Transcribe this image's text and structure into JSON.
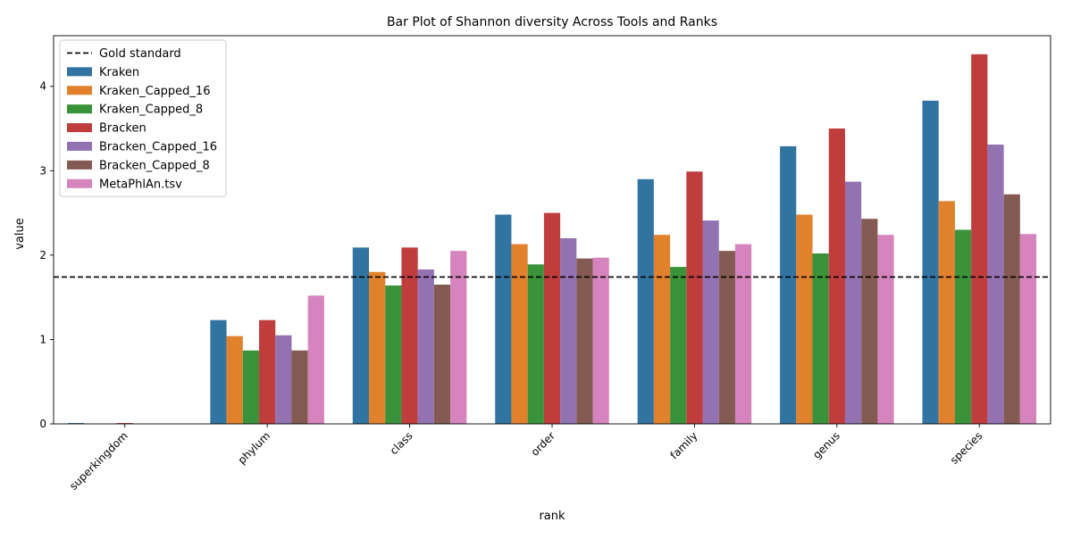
{
  "chart_data": {
    "type": "bar",
    "title": "Bar Plot of Shannon diversity Across Tools and Ranks",
    "xlabel": "rank",
    "ylabel": "value",
    "ylim": [
      0,
      4.6
    ],
    "yticks": [
      0,
      1,
      2,
      3,
      4
    ],
    "ytick_labels": [
      "0",
      "1",
      "2",
      "3",
      "4"
    ],
    "categories": [
      "superkingdom",
      "phylum",
      "class",
      "order",
      "family",
      "genus",
      "species"
    ],
    "reference_line": {
      "name": "Gold standard",
      "value": 1.74,
      "style": "dashed",
      "color": "#000000"
    },
    "legend_position": "upper-left",
    "grid": false,
    "series": [
      {
        "name": "Kraken",
        "color": "#3274a1",
        "values": [
          0.01,
          1.23,
          2.09,
          2.48,
          2.9,
          3.29,
          3.83
        ]
      },
      {
        "name": "Kraken_Capped_16",
        "color": "#e1812c",
        "values": [
          0.0,
          1.04,
          1.8,
          2.13,
          2.24,
          2.48,
          2.64
        ]
      },
      {
        "name": "Kraken_Capped_8",
        "color": "#3a923a",
        "values": [
          0.0,
          0.87,
          1.64,
          1.89,
          1.86,
          2.02,
          2.3
        ]
      },
      {
        "name": "Bracken",
        "color": "#c03d3e",
        "values": [
          0.01,
          1.23,
          2.09,
          2.5,
          2.99,
          3.5,
          4.38
        ]
      },
      {
        "name": "Bracken_Capped_16",
        "color": "#9372b2",
        "values": [
          0.0,
          1.05,
          1.83,
          2.2,
          2.41,
          2.87,
          3.31
        ]
      },
      {
        "name": "Bracken_Capped_8",
        "color": "#845b53",
        "values": [
          0.0,
          0.87,
          1.65,
          1.96,
          2.05,
          2.43,
          2.72
        ]
      },
      {
        "name": "MetaPhlAn.tsv",
        "color": "#d684bd",
        "values": [
          0.0,
          1.52,
          2.05,
          1.97,
          2.13,
          2.24,
          2.25
        ]
      }
    ]
  }
}
